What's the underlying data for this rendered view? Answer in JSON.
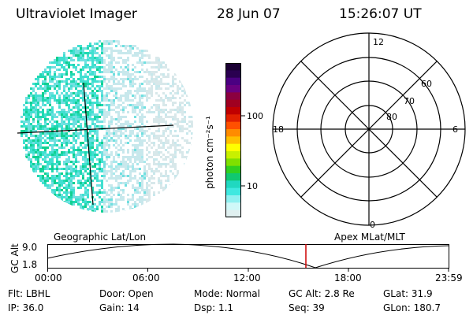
{
  "header": {
    "instrument": "Ultraviolet Imager",
    "date": "28 Jun 07",
    "time": "15:26:07 UT"
  },
  "colorbar": {
    "unit_label": "photon cm⁻²s⁻¹",
    "ticks": [
      "100",
      "10"
    ],
    "colors": [
      "#1a0033",
      "#2a0050",
      "#4b0082",
      "#6a0080",
      "#8b0040",
      "#a00020",
      "#c00000",
      "#e02000",
      "#ff5000",
      "#ff8c00",
      "#ffc000",
      "#ffff00",
      "#c8f000",
      "#80e000",
      "#30d020",
      "#10c870",
      "#20d8c0",
      "#40e8e0",
      "#90f0f0",
      "#d0f8f8",
      "#e0f0f0"
    ]
  },
  "polar": {
    "mlt_labels": [
      "12",
      "6",
      "0",
      "18"
    ],
    "lat_labels": [
      "60",
      "70",
      "80"
    ]
  },
  "timeline": {
    "left_label": "Geographic Lat/Lon",
    "right_label": "Apex MLat/MLT",
    "y_axis_label": "GC Alt",
    "y_ticks": [
      "9.0",
      "1.8"
    ],
    "x_ticks": [
      "00:00",
      "06:00",
      "12:00",
      "18:00",
      "23:59"
    ],
    "marker_color": "#cc0000"
  },
  "status": {
    "row1": [
      {
        "key": "Flt:",
        "val": "LBHL"
      },
      {
        "key": "Door:",
        "val": "Open"
      },
      {
        "key": "Mode:",
        "val": "Normal"
      },
      {
        "key": "GC Alt:",
        "val": "2.8 Re"
      },
      {
        "key": "GLat:",
        "val": "31.9"
      }
    ],
    "row2": [
      {
        "key": "IP:",
        "val": "36.0"
      },
      {
        "key": "Gain:",
        "val": "14"
      },
      {
        "key": "Dsp:",
        "val": "1.1"
      },
      {
        "key": "Seq:",
        "val": "39"
      },
      {
        "key": "GLon:",
        "val": "180.7"
      }
    ]
  }
}
